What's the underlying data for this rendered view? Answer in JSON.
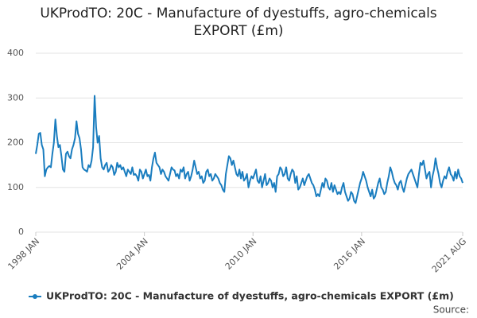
{
  "chart_data": {
    "type": "line",
    "title": "UKProdTO: 20C - Manufacture of dyestuffs, agro-chemicals EXPORT (£m)",
    "source": "Source:",
    "categories": [
      "1998 JAN",
      null,
      null,
      null,
      null,
      null,
      null,
      null,
      null,
      null,
      null,
      null,
      null,
      null,
      null,
      null,
      null,
      null,
      null,
      null,
      null,
      null,
      null,
      null,
      null,
      null,
      null,
      null,
      null,
      null,
      null,
      null,
      null,
      null,
      null,
      null,
      null,
      null,
      null,
      null,
      null,
      null,
      null,
      null,
      null,
      null,
      null,
      null,
      null,
      null,
      null,
      null,
      null,
      null,
      null,
      null,
      null,
      null,
      null,
      null,
      null,
      null,
      null,
      null,
      null,
      null,
      null,
      null,
      null,
      null,
      null,
      null,
      "2004 JAN",
      null,
      null,
      null,
      null,
      null,
      null,
      null,
      null,
      null,
      null,
      null,
      null,
      null,
      null,
      null,
      null,
      null,
      null,
      null,
      null,
      null,
      null,
      null,
      null,
      null,
      null,
      null,
      null,
      null,
      null,
      null,
      null,
      null,
      null,
      null,
      null,
      null,
      null,
      null,
      null,
      null,
      null,
      null,
      null,
      null,
      null,
      null,
      null,
      null,
      null,
      null,
      null,
      null,
      null,
      null,
      null,
      null,
      null,
      null,
      null,
      null,
      null,
      null,
      null,
      null,
      null,
      null,
      null,
      null,
      null,
      null,
      "2010 JAN",
      null,
      null,
      null,
      null,
      null,
      null,
      null,
      null,
      null,
      null,
      null,
      null,
      null,
      null,
      null,
      null,
      null,
      null,
      null,
      null,
      null,
      null,
      null,
      null,
      null,
      null,
      null,
      null,
      null,
      null,
      null,
      null,
      null,
      null,
      null,
      null,
      null,
      null,
      null,
      null,
      null,
      null,
      null,
      null,
      null,
      null,
      null,
      null,
      null,
      null,
      null,
      null,
      null,
      null,
      null,
      null,
      null,
      null,
      null,
      null,
      null,
      null,
      null,
      null,
      null,
      null,
      null,
      null,
      null,
      null,
      null,
      "2016 JAN",
      null,
      null,
      null,
      null,
      null,
      null,
      null,
      null,
      null,
      null,
      null,
      null,
      null,
      null,
      null,
      null,
      null,
      null,
      null,
      null,
      null,
      null,
      null,
      null,
      null,
      null,
      null,
      null,
      null,
      null,
      null,
      null,
      null,
      null,
      null,
      null,
      null,
      null,
      null,
      null,
      null,
      null,
      null,
      null,
      null,
      null,
      null,
      null,
      null,
      null,
      null,
      null,
      null,
      null,
      null,
      null,
      null,
      null,
      null,
      null,
      null,
      null,
      null,
      null,
      null,
      null,
      "2021 AUG"
    ],
    "series": [
      {
        "name": "UKProdTO: 20C - Manufacture of dyestuffs, agro-chemicals EXPORT (£m)",
        "color": "#1a7dbf",
        "values": [
          175,
          195,
          220,
          222,
          195,
          185,
          125,
          140,
          145,
          148,
          145,
          175,
          200,
          252,
          215,
          190,
          195,
          170,
          140,
          135,
          175,
          180,
          170,
          165,
          185,
          195,
          210,
          248,
          220,
          210,
          185,
          145,
          140,
          138,
          135,
          150,
          145,
          160,
          190,
          305,
          235,
          200,
          215,
          165,
          145,
          140,
          150,
          155,
          135,
          140,
          150,
          145,
          128,
          135,
          155,
          145,
          150,
          140,
          145,
          135,
          125,
          140,
          135,
          130,
          145,
          128,
          130,
          125,
          115,
          140,
          135,
          120,
          130,
          140,
          125,
          128,
          115,
          145,
          165,
          178,
          155,
          150,
          145,
          130,
          140,
          135,
          125,
          120,
          115,
          130,
          145,
          140,
          138,
          125,
          130,
          120,
          140,
          135,
          145,
          120,
          130,
          135,
          115,
          125,
          140,
          160,
          145,
          130,
          135,
          120,
          125,
          110,
          115,
          135,
          140,
          125,
          130,
          115,
          120,
          130,
          125,
          120,
          110,
          105,
          95,
          90,
          130,
          150,
          170,
          165,
          150,
          160,
          145,
          130,
          125,
          140,
          120,
          135,
          115,
          120,
          130,
          100,
          115,
          125,
          120,
          130,
          140,
          115,
          110,
          125,
          100,
          115,
          130,
          105,
          110,
          120,
          115,
          100,
          110,
          90,
          125,
          130,
          145,
          140,
          125,
          130,
          145,
          120,
          115,
          130,
          140,
          135,
          110,
          125,
          95,
          100,
          110,
          120,
          105,
          115,
          125,
          130,
          120,
          110,
          105,
          95,
          80,
          85,
          80,
          95,
          110,
          100,
          120,
          115,
          100,
          95,
          110,
          90,
          105,
          95,
          85,
          90,
          85,
          100,
          110,
          90,
          80,
          70,
          75,
          90,
          85,
          70,
          65,
          80,
          95,
          110,
          120,
          135,
          125,
          115,
          100,
          90,
          80,
          95,
          75,
          80,
          95,
          110,
          120,
          100,
          95,
          85,
          90,
          110,
          125,
          145,
          135,
          120,
          110,
          105,
          95,
          110,
          115,
          100,
          90,
          105,
          120,
          130,
          135,
          140,
          130,
          120,
          110,
          100,
          130,
          155,
          150,
          160,
          140,
          120,
          130,
          135,
          100,
          125,
          140,
          165,
          145,
          130,
          110,
          100,
          115,
          125,
          120,
          135,
          145,
          130,
          125,
          115,
          135,
          120,
          140,
          125,
          120,
          110
        ]
      }
    ],
    "ylim": [
      0,
      400
    ],
    "yticks": [
      0,
      100,
      200,
      300,
      400
    ],
    "grid": true
  }
}
